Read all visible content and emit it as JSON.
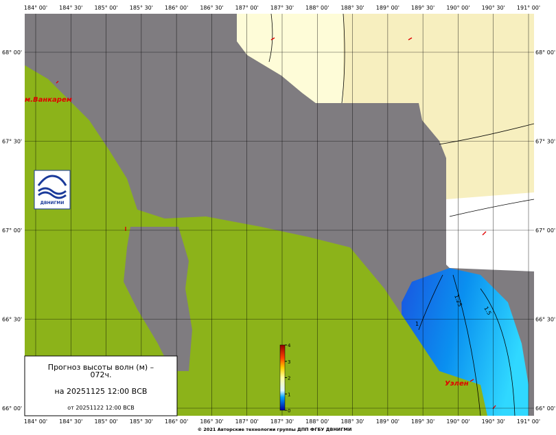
{
  "map": {
    "lon_labels": [
      "184° 00'",
      "184° 30'",
      "185° 00'",
      "185° 30'",
      "186° 00'",
      "186° 30'",
      "187° 00'",
      "187° 30'",
      "188° 00'",
      "188° 30'",
      "189° 00'",
      "189° 30'",
      "190° 00'",
      "190° 30'",
      "191° 00'"
    ],
    "lat_labels": [
      "68° 00'",
      "67° 30'",
      "67° 00'",
      "66° 30'",
      "66° 00'"
    ],
    "places": [
      "м.Ванкарем",
      "Уэлен"
    ],
    "contour_labels": [
      "1",
      "1.25",
      "1.5"
    ],
    "legend": {
      "title": "Прогноз высоты волн (м) –",
      "lead": "072ч.",
      "valid": "на 20251125 12:00 ВСВ",
      "issued": "от 20251122 12:00 ВСВ"
    },
    "colorbar": {
      "ylim": [
        0,
        4
      ],
      "yticks": [
        0,
        1,
        2,
        3,
        4
      ]
    },
    "logo": "ДВНИГМИ",
    "copyright": "© 2021 Авторские технологии группы ДПП ФГБУ ДВНИГМИ"
  }
}
